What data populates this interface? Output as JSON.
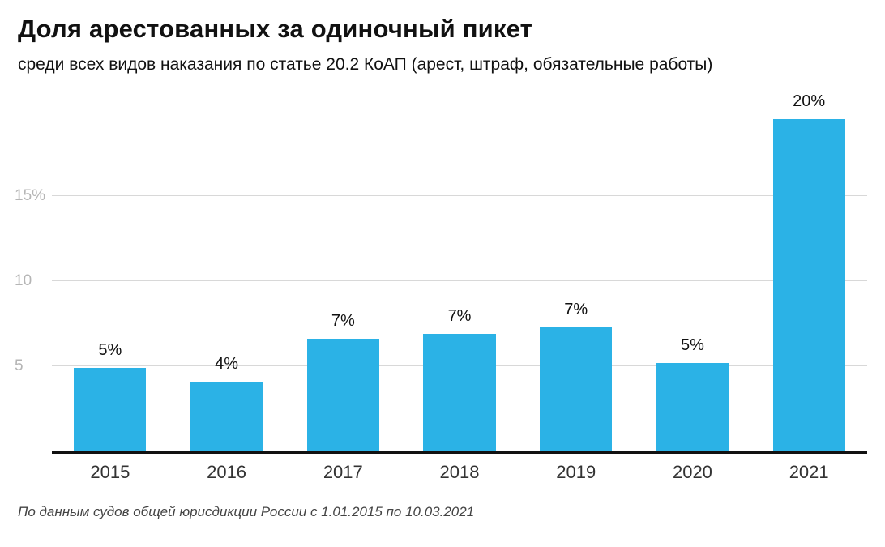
{
  "header": {
    "title": "Доля арестованных за одиночный пикет",
    "subtitle": "среди всех видов наказания по статье 20.2 КоАП (арест, штраф, обязательные работы)"
  },
  "footer": {
    "source_note": "По данным судов общей юрисдикции России с 1.01.2015 по 10.03.2021"
  },
  "colors": {
    "bar": "#2BB2E6",
    "grid": "#d8d8d8",
    "axis": "#111111",
    "tick_label": "#b5b5b5"
  },
  "chart_data": {
    "type": "bar",
    "title": "Доля арестованных за одиночный пикет",
    "subtitle": "среди всех видов наказания по статье 20.2 КоАП (арест, штраф, обязательные работы)",
    "categories": [
      "2015",
      "2016",
      "2017",
      "2018",
      "2019",
      "2020",
      "2021"
    ],
    "values": [
      4.9,
      4.1,
      6.6,
      6.9,
      7.3,
      5.2,
      19.5
    ],
    "data_labels": [
      "5%",
      "4%",
      "7%",
      "7%",
      "7%",
      "5%",
      "20%"
    ],
    "yticks": [
      {
        "value": 5,
        "label": "5"
      },
      {
        "value": 10,
        "label": "10"
      },
      {
        "value": 15,
        "label": "15%"
      }
    ],
    "ylim": [
      0,
      20.7
    ],
    "xlabel": "",
    "ylabel": "",
    "grid": true,
    "legend_position": "none",
    "source": "По данным судов общей юрисдикции России с 1.01.2015 по 10.03.2021"
  }
}
